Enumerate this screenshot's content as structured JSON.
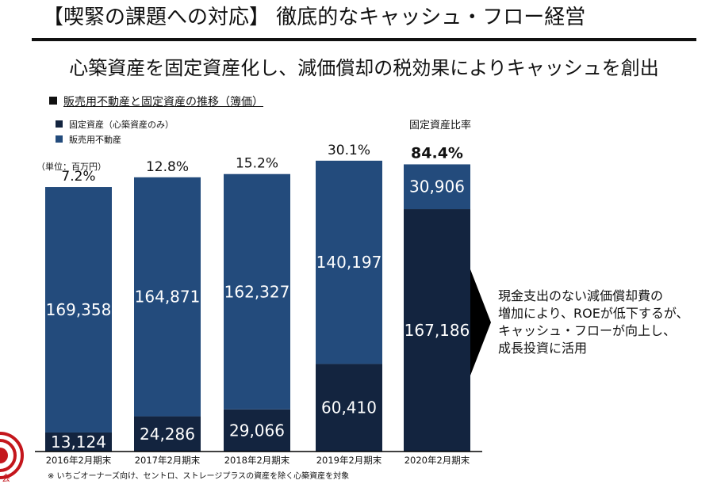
{
  "slide": {
    "title": "【喫緊の課題への対応】 徹底的なキャッシュ・フロー経営",
    "subtitle": "心築資産を固定資産化し、減価償却の税効果によりキャッシュを創出",
    "section_heading": "販売用不動産と固定資産の推移（簿価）",
    "unit_label": "（単位：百万円）",
    "ratio_header": "固定資産比率",
    "footnote": "※ いちごオーナーズ向け、セントロ、ストレージプラスの資産を除く心築資産を対象",
    "callout_lines": [
      "現金支出のない減価償却費の",
      "増加により、ROEが低下するが、",
      "キャッシュ・フローが向上し、",
      "成長投資に活用"
    ],
    "logo_text": "会"
  },
  "colors": {
    "fixed_assets": "#13243f",
    "real_estate_for_sale": "#234b7c",
    "label_text": "#ffffff"
  },
  "chart_data": {
    "type": "bar",
    "stacked": true,
    "title": "販売用不動産と固定資産の推移（簿価）",
    "unit": "百万円",
    "categories": [
      "2016年2月期末",
      "2017年2月期末",
      "2018年2月期末",
      "2019年2月期末",
      "2020年2月期末"
    ],
    "series": [
      {
        "name": "固定資産（心築資産のみ）",
        "values": [
          13124,
          24286,
          29066,
          60410,
          167186
        ]
      },
      {
        "name": "販売用不動産",
        "values": [
          169358,
          164871,
          162327,
          140197,
          30906
        ]
      }
    ],
    "value_labels": {
      "固定資産（心築資産のみ）": [
        "13,124",
        "24,286",
        "29,066",
        "60,410",
        "167,186"
      ],
      "販売用不動産": [
        "169,358",
        "164,871",
        "162,327",
        "140,197",
        "30,906"
      ]
    },
    "fixed_asset_ratio": {
      "label": "固定資産比率",
      "values": [
        "7.2%",
        "12.8%",
        "15.2%",
        "30.1%",
        "84.4%"
      ],
      "emphasized_index": 4
    },
    "ylim": [
      0,
      200530
    ],
    "grid": false,
    "legend": "top-left"
  }
}
